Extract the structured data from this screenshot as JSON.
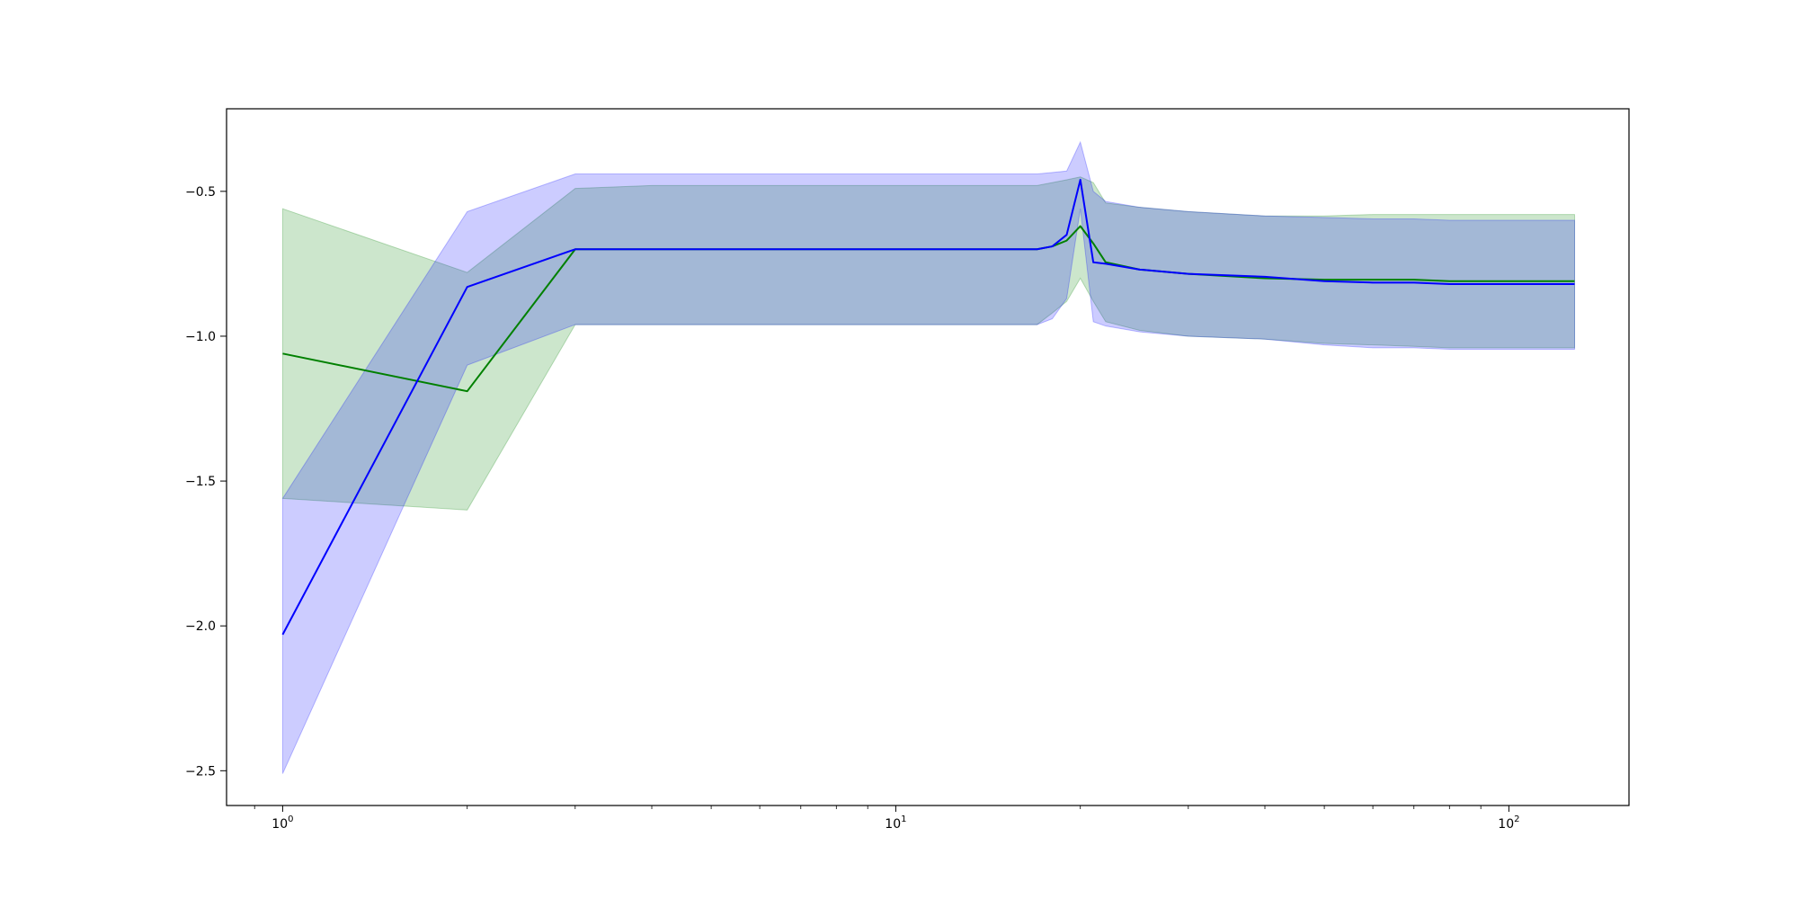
{
  "chart_data": {
    "type": "line",
    "title": "",
    "xlabel": "",
    "ylabel": "",
    "x_scale": "log",
    "xlim": [
      0.81,
      157
    ],
    "ylim": [
      -2.62,
      -0.215
    ],
    "grid": false,
    "x_ticks": [
      {
        "value": 1,
        "base": "10",
        "exp": "0"
      },
      {
        "value": 10,
        "base": "10",
        "exp": "1"
      },
      {
        "value": 100,
        "base": "10",
        "exp": "2"
      }
    ],
    "y_ticks": [
      {
        "value": -0.5,
        "label": "−0.5"
      },
      {
        "value": -1.0,
        "label": "−1.0"
      },
      {
        "value": -1.5,
        "label": "−1.5"
      },
      {
        "value": -2.0,
        "label": "−2.0"
      },
      {
        "value": -2.5,
        "label": "−2.5"
      }
    ],
    "series": [
      {
        "color": "#008000",
        "band_color": "#008000",
        "x": [
          1,
          2,
          3,
          4,
          6,
          10,
          15,
          17,
          18,
          19,
          20,
          21,
          22,
          25,
          30,
          40,
          50,
          60,
          70,
          80,
          100,
          128
        ],
        "mean": [
          -1.06,
          -1.19,
          -0.7,
          -0.7,
          -0.7,
          -0.7,
          -0.7,
          -0.7,
          -0.69,
          -0.67,
          -0.62,
          -0.68,
          -0.745,
          -0.77,
          -0.785,
          -0.8,
          -0.805,
          -0.805,
          -0.805,
          -0.81,
          -0.81,
          -0.81
        ],
        "upper": [
          -0.56,
          -0.78,
          -0.49,
          -0.48,
          -0.48,
          -0.48,
          -0.48,
          -0.48,
          -0.47,
          -0.46,
          -0.45,
          -0.47,
          -0.54,
          -0.555,
          -0.57,
          -0.585,
          -0.585,
          -0.58,
          -0.58,
          -0.58,
          -0.58,
          -0.58
        ],
        "lower": [
          -1.56,
          -1.6,
          -0.96,
          -0.96,
          -0.96,
          -0.96,
          -0.96,
          -0.96,
          -0.92,
          -0.88,
          -0.8,
          -0.88,
          -0.95,
          -0.98,
          -1.0,
          -1.01,
          -1.025,
          -1.03,
          -1.035,
          -1.04,
          -1.04,
          -1.04
        ]
      },
      {
        "color": "#0000ff",
        "band_color": "#0000ff",
        "x": [
          1,
          2,
          3,
          4,
          6,
          10,
          15,
          17,
          18,
          19,
          20,
          21,
          22,
          25,
          30,
          40,
          50,
          60,
          70,
          80,
          100,
          128
        ],
        "mean": [
          -2.03,
          -0.83,
          -0.7,
          -0.7,
          -0.7,
          -0.7,
          -0.7,
          -0.7,
          -0.69,
          -0.65,
          -0.46,
          -0.745,
          -0.75,
          -0.77,
          -0.785,
          -0.795,
          -0.81,
          -0.815,
          -0.815,
          -0.82,
          -0.82,
          -0.82
        ],
        "upper": [
          -1.56,
          -0.57,
          -0.44,
          -0.44,
          -0.44,
          -0.44,
          -0.44,
          -0.44,
          -0.435,
          -0.43,
          -0.33,
          -0.5,
          -0.535,
          -0.555,
          -0.57,
          -0.585,
          -0.59,
          -0.595,
          -0.595,
          -0.6,
          -0.6,
          -0.6
        ],
        "lower": [
          -2.51,
          -1.1,
          -0.96,
          -0.96,
          -0.96,
          -0.96,
          -0.96,
          -0.96,
          -0.94,
          -0.87,
          -0.56,
          -0.95,
          -0.965,
          -0.985,
          -1.0,
          -1.01,
          -1.03,
          -1.04,
          -1.04,
          -1.045,
          -1.045,
          -1.045
        ]
      }
    ]
  }
}
